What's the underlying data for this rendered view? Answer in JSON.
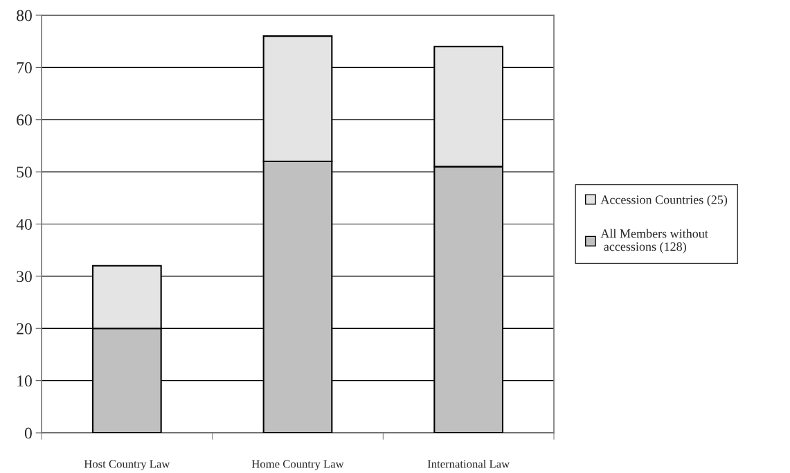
{
  "chart_data": {
    "type": "bar",
    "stacked": true,
    "categories": [
      "Host Country Law",
      "Home Country Law",
      "International Law"
    ],
    "series": [
      {
        "name": "All Members without\n accessions (128)",
        "color": "#c0c0c0",
        "values": [
          20,
          52,
          51
        ]
      },
      {
        "name": "Accession Countries (25)",
        "color": "#e4e4e4",
        "values": [
          12,
          24,
          23
        ]
      }
    ],
    "ylim": [
      0,
      80
    ],
    "yticks": [
      0,
      10,
      20,
      30,
      40,
      50,
      60,
      70,
      80
    ],
    "grid": "y",
    "legend": "right"
  }
}
